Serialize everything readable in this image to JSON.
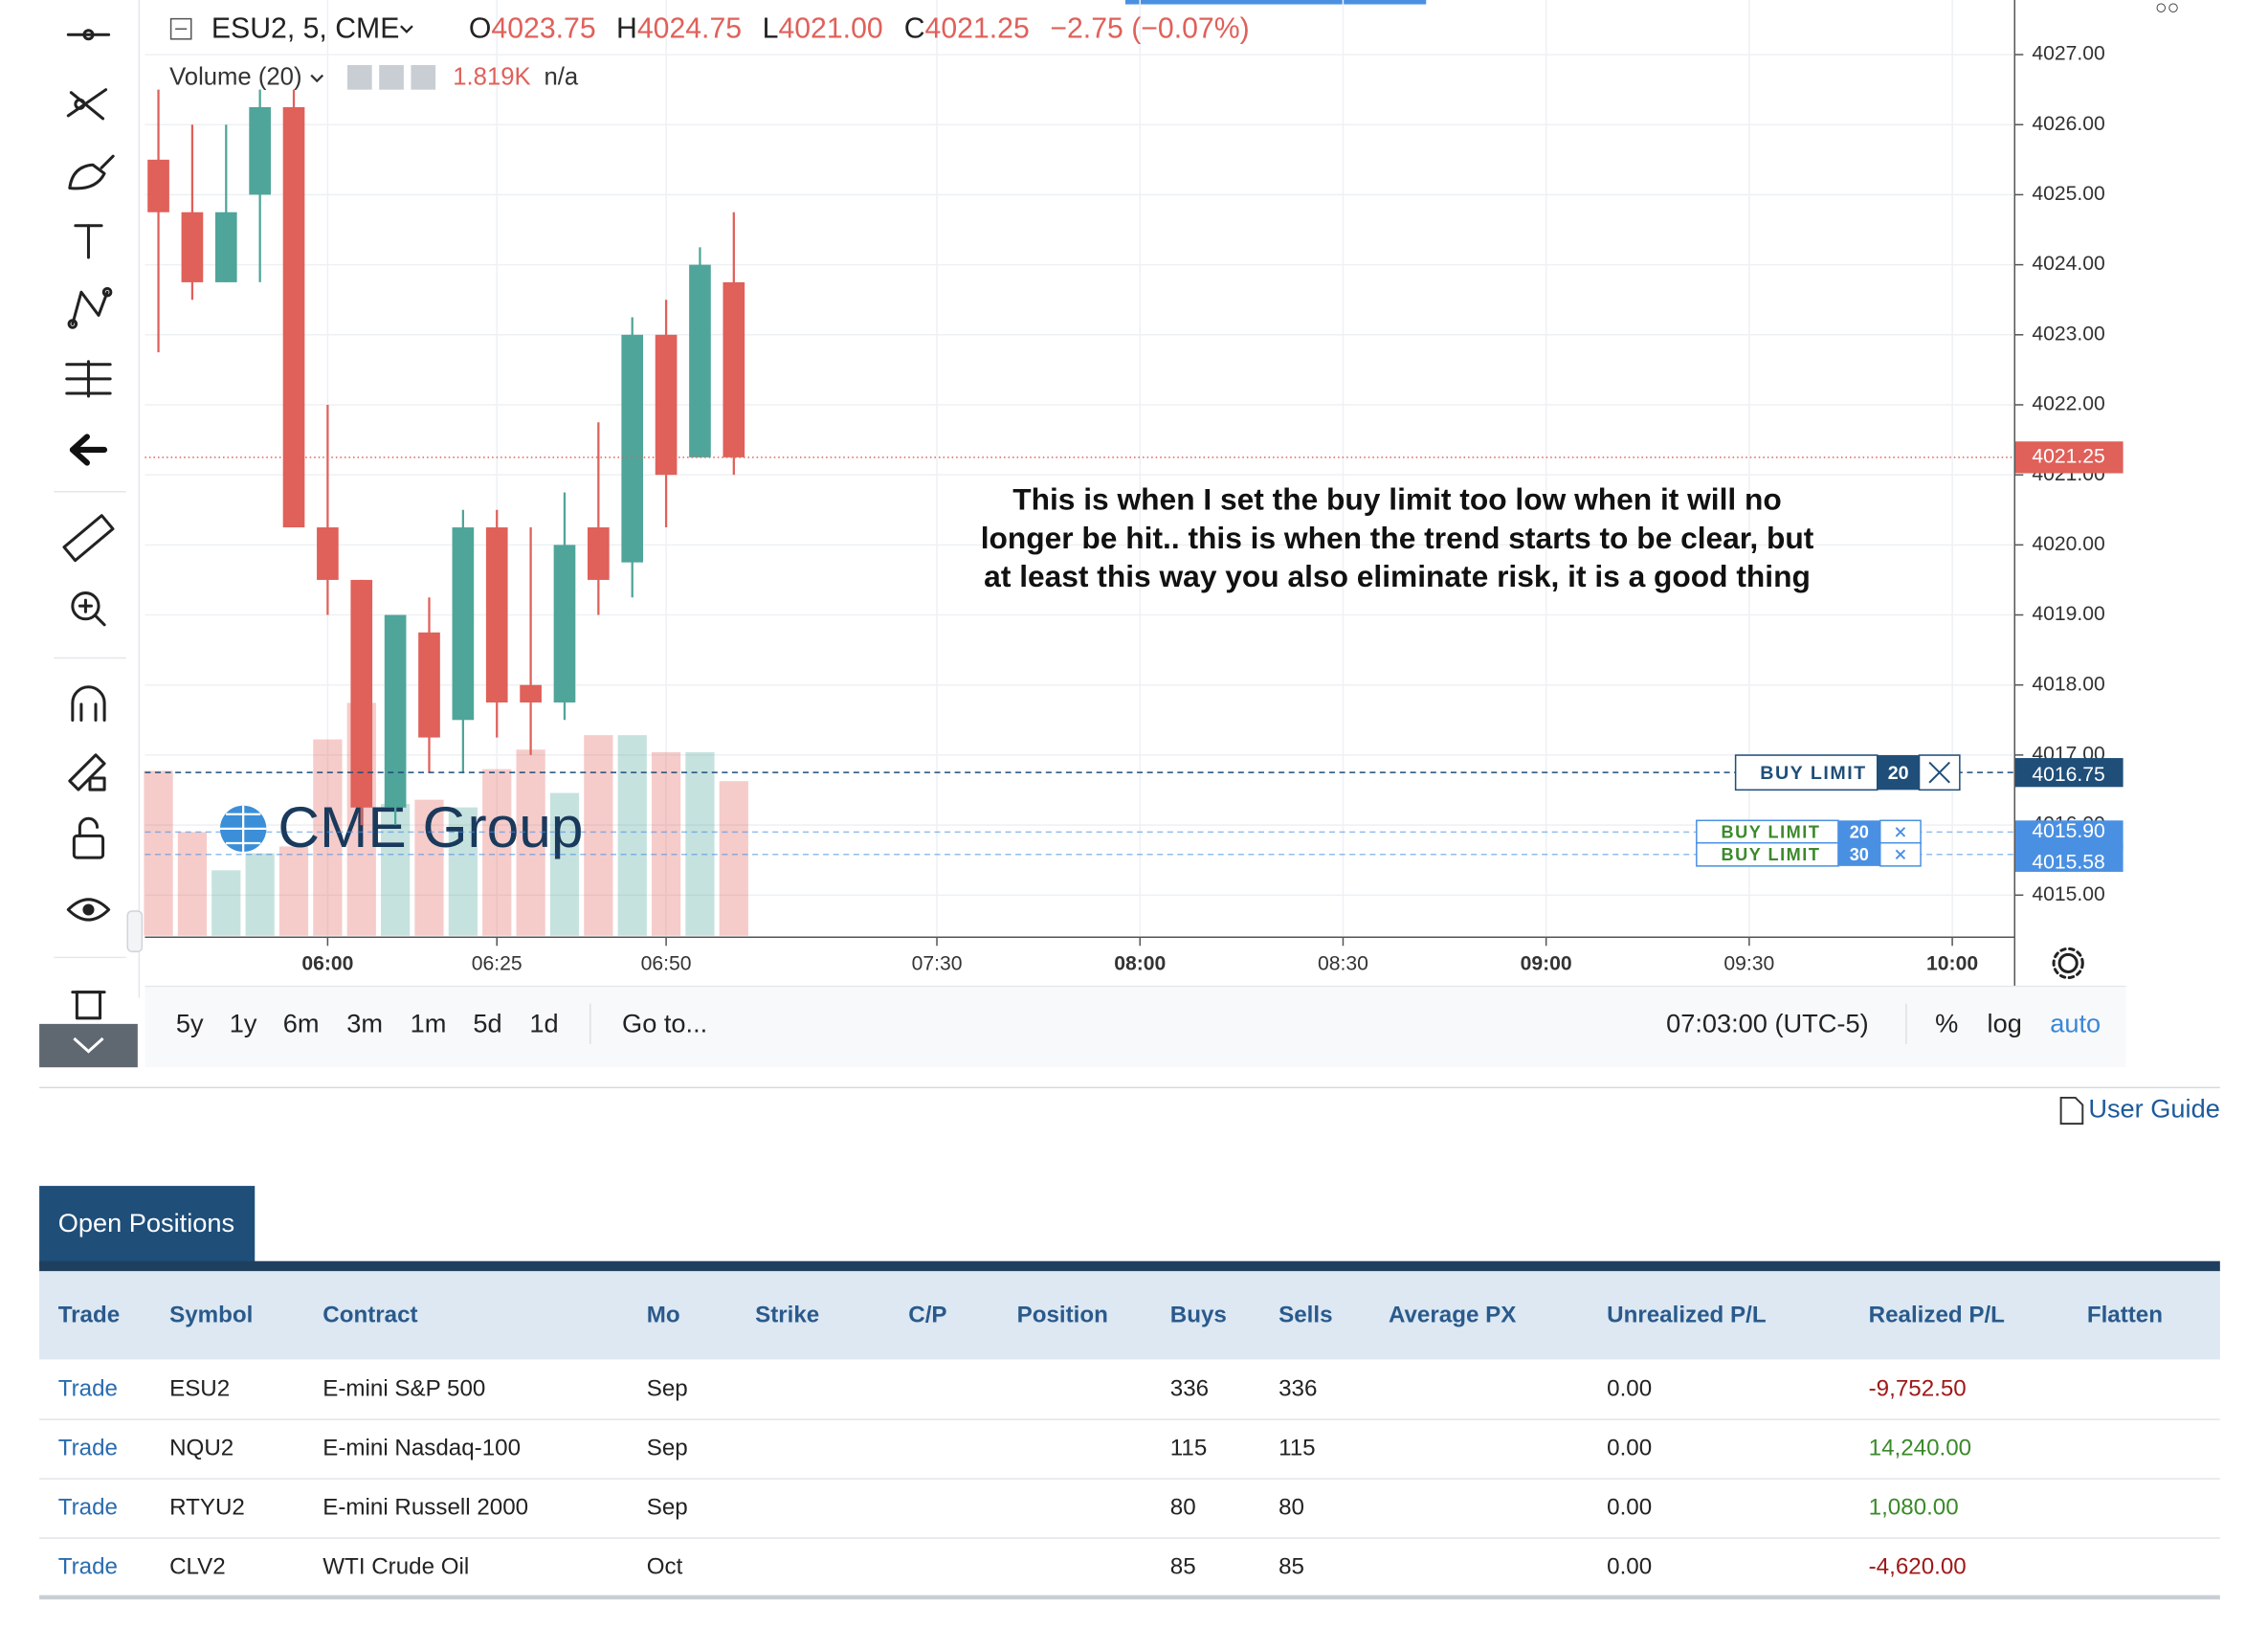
{
  "chart_data": {
    "type": "candlestick",
    "symbol": "ESU2, 5, CME",
    "ohlc_legend": [
      {
        "key": "O",
        "value": "4023.75"
      },
      {
        "key": "H",
        "value": "4024.75"
      },
      {
        "key": "L",
        "value": "4021.00"
      },
      {
        "key": "C",
        "value": "4021.25"
      }
    ],
    "change": "−2.75 (−0.07%)",
    "volume_title": "Volume (20)",
    "volume_value": "1.819K",
    "volume_extra": "n/a",
    "x": [
      "05:35",
      "05:40",
      "05:45",
      "05:50",
      "05:55",
      "06:00",
      "06:05",
      "06:10",
      "06:15",
      "06:20",
      "06:25",
      "06:30",
      "06:35",
      "06:40",
      "06:45",
      "06:50",
      "06:55",
      "07:00"
    ],
    "open": [
      4025.5,
      4024.75,
      4023.75,
      4025.0,
      4026.25,
      4020.25,
      4019.5,
      4016.25,
      4018.75,
      4017.5,
      4020.25,
      4018.0,
      4017.75,
      4020.25,
      4019.75,
      4023.0,
      4021.25,
      4023.75
    ],
    "high": [
      4026.5,
      4026.0,
      4026.0,
      4026.5,
      4026.5,
      4022.0,
      4019.5,
      4019.0,
      4019.25,
      4020.5,
      4020.5,
      4020.25,
      4020.75,
      4021.75,
      4023.25,
      4023.5,
      4024.25,
      4024.75
    ],
    "low": [
      4022.75,
      4023.5,
      4023.75,
      4023.75,
      4020.25,
      4019.0,
      4016.0,
      4016.0,
      4016.75,
      4016.75,
      4017.25,
      4017.0,
      4017.5,
      4019.0,
      4019.25,
      4020.25,
      4021.25,
      4021.0
    ],
    "close": [
      4024.75,
      4023.75,
      4024.75,
      4026.25,
      4020.25,
      4019.5,
      4016.25,
      4019.0,
      4017.25,
      4020.25,
      4017.75,
      4017.75,
      4020.0,
      4019.5,
      4023.0,
      4021.0,
      4024.0,
      4021.25
    ],
    "volume": [
      1.94,
      1.22,
      0.77,
      0.97,
      1.05,
      2.31,
      2.74,
      1.55,
      1.6,
      1.51,
      1.96,
      2.19,
      1.68,
      2.36,
      2.36,
      2.16,
      2.16,
      1.819
    ],
    "xlim": [
      "05:33",
      "10:09"
    ],
    "xticks": [
      "06:00",
      "06:25",
      "06:50",
      "07:30",
      "08:00",
      "08:30",
      "09:00",
      "09:30",
      "10:00"
    ],
    "ylim": [
      4014.42,
      4027.78
    ],
    "yticks": [
      {
        "value": 4015,
        "label": "4015.00"
      },
      {
        "value": 4016,
        "label": "4016.00"
      },
      {
        "value": 4017,
        "label": "4017.00"
      },
      {
        "value": 4018,
        "label": "4018.00"
      },
      {
        "value": 4019,
        "label": "4019.00"
      },
      {
        "value": 4020,
        "label": "4020.00"
      },
      {
        "value": 4021,
        "label": "4021.00"
      },
      {
        "value": 4022,
        "label": "4022.00"
      },
      {
        "value": 4023,
        "label": "4023.00"
      },
      {
        "value": 4024,
        "label": "4024.00"
      },
      {
        "value": 4025,
        "label": "4025.00"
      },
      {
        "value": 4026,
        "label": "4026.00"
      },
      {
        "value": 4027,
        "label": "4027.00"
      }
    ],
    "grid": true,
    "up_color": "#4fa59a",
    "down_color": "#e0605a",
    "last_price": {
      "value": 4021.25,
      "label": "4021.25"
    },
    "orders": [
      {
        "label": "BUY LIMIT",
        "qty": 20,
        "price": {
          "value": 4016.75,
          "label": "4016.75"
        },
        "color": "#1f4e79",
        "text_color": "#1f4e79"
      },
      {
        "label": "BUY LIMIT",
        "qty": 20,
        "price": {
          "value": 4015.9,
          "label": "4015.90"
        },
        "color": "#4a90e2",
        "text_color": "#3a8a2a"
      },
      {
        "label": "BUY LIMIT",
        "qty": 30,
        "price": {
          "value": 4015.58,
          "label": "4015.58"
        },
        "color": "#4a90e2",
        "text_color": "#3a8a2a"
      }
    ],
    "annotation": [
      "This is when I set the buy limit too low when it will no",
      "longer be hit.. this is when the trend starts to be clear, but",
      "at least this way you also eliminate risk, it is a good thing"
    ],
    "watermark": "CME Group"
  },
  "range_buttons": [
    "5y",
    "1y",
    "6m",
    "3m",
    "1m",
    "5d",
    "1d"
  ],
  "goto": "Go to...",
  "clock": "07:03:00 (UTC-5)",
  "scale_buttons": [
    "%",
    "log",
    "auto"
  ],
  "user_guide": "User Guide",
  "tab": "Open Positions",
  "table": {
    "columns": [
      "Trade",
      "Symbol",
      "Contract",
      "Mo",
      "Strike",
      "C/P",
      "Position",
      "Buys",
      "Sells",
      "Average PX",
      "Unrealized P/L",
      "Realized P/L",
      "Flatten"
    ],
    "rows": [
      [
        "Trade",
        "ESU2",
        "E-mini S&P 500",
        "Sep",
        null,
        null,
        null,
        336,
        336,
        null,
        "0.00",
        "-9,752.50",
        null
      ],
      [
        "Trade",
        "NQU2",
        "E-mini Nasdaq-100",
        "Sep",
        null,
        null,
        null,
        115,
        115,
        null,
        "0.00",
        "14,240.00",
        null
      ],
      [
        "Trade",
        "RTYU2",
        "E-mini Russell 2000",
        "Sep",
        null,
        null,
        null,
        80,
        80,
        null,
        "0.00",
        "1,080.00",
        null
      ],
      [
        "Trade",
        "CLV2",
        "WTI Crude Oil",
        "Oct",
        null,
        null,
        null,
        85,
        85,
        null,
        "0.00",
        "-4,620.00",
        null
      ]
    ]
  }
}
